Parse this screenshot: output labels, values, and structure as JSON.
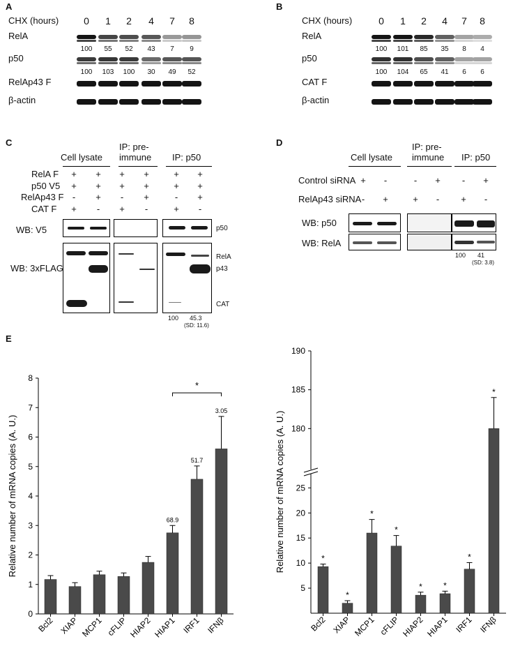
{
  "panelA": {
    "letter": "A",
    "header_label": "CHX (hours)",
    "timepoints": [
      "0",
      "1",
      "2",
      "4",
      "7",
      "8"
    ],
    "rows": [
      {
        "label": "RelA",
        "quant": [
          "100",
          "55",
          "52",
          "43",
          "7",
          "9"
        ],
        "intensity": [
          1.0,
          0.75,
          0.7,
          0.65,
          0.3,
          0.32
        ]
      },
      {
        "label": "p50",
        "quant": [
          "100",
          "103",
          "100",
          "30",
          "49",
          "52"
        ],
        "intensity": [
          0.8,
          0.82,
          0.8,
          0.55,
          0.65,
          0.66
        ]
      },
      {
        "label": "RelAp43 F",
        "quant": [],
        "intensity": [
          1.0,
          1.0,
          1.0,
          1.0,
          1.0,
          1.0
        ]
      },
      {
        "label": "β-actin",
        "quant": [],
        "intensity": [
          1.0,
          1.0,
          1.0,
          1.0,
          1.0,
          1.0
        ]
      }
    ]
  },
  "panelB": {
    "letter": "B",
    "header_label": "CHX (hours)",
    "timepoints": [
      "0",
      "1",
      "2",
      "4",
      "7",
      "8"
    ],
    "rows": [
      {
        "label": "RelA",
        "quant": [
          "100",
          "101",
          "85",
          "35",
          "8",
          "4"
        ],
        "intensity": [
          1.0,
          1.0,
          0.9,
          0.6,
          0.25,
          0.2
        ]
      },
      {
        "label": "p50",
        "quant": [
          "100",
          "104",
          "65",
          "41",
          "6",
          "6"
        ],
        "intensity": [
          0.85,
          0.85,
          0.7,
          0.6,
          0.25,
          0.25
        ]
      },
      {
        "label": "CAT F",
        "quant": [],
        "intensity": [
          1.0,
          1.0,
          1.0,
          1.0,
          1.0,
          1.0
        ]
      },
      {
        "label": "β-actin",
        "quant": [],
        "intensity": [
          1.0,
          1.0,
          1.0,
          1.0,
          1.0,
          1.0
        ]
      }
    ]
  },
  "panelC": {
    "letter": "C",
    "groups": [
      "Cell lysate",
      "IP: pre-",
      "immune",
      "IP: p50"
    ],
    "conditions": [
      {
        "label": "RelA F",
        "marks": [
          "+",
          "+",
          "+",
          "+",
          "+",
          "+"
        ]
      },
      {
        "label": "p50 V5",
        "marks": [
          "+",
          "+",
          "+",
          "+",
          "+",
          "+"
        ]
      },
      {
        "label": "RelAp43 F",
        "marks": [
          "-",
          "+",
          "-",
          "+",
          "-",
          "+"
        ]
      },
      {
        "label": "CAT F",
        "marks": [
          "+",
          "-",
          "+",
          "-",
          "+",
          "-"
        ]
      }
    ],
    "wb_v5": "WB: V5",
    "wb_flag": "WB: 3xFLAG",
    "band_labels": [
      "p50",
      "RelA",
      "p43",
      "CAT"
    ],
    "quant": [
      "100",
      "45.3"
    ],
    "sd": "(SD: 11.6)"
  },
  "panelD": {
    "letter": "D",
    "groups": [
      "Cell lysate",
      "IP: pre-",
      "immune",
      "IP: p50"
    ],
    "conditions": [
      {
        "label": "Control siRNA",
        "marks": [
          "+",
          "-",
          "-",
          "+",
          "-",
          "+"
        ]
      },
      {
        "label": "RelAp43 siRNA",
        "marks": [
          "-",
          "+",
          "+",
          "-",
          "+",
          "-"
        ]
      }
    ],
    "wb_p50": "WB: p50",
    "wb_rela": "WB: RelA",
    "quant": [
      "100",
      "41"
    ],
    "sd": "(SD: 3.8)"
  },
  "panelE": {
    "letter": "E"
  },
  "chart_data": [
    {
      "type": "bar",
      "title": "",
      "xlabel": "",
      "ylabel": "Relative number of mRNA copies (A. U.)",
      "categories": [
        "Bcl2",
        "XIAP",
        "MCP1",
        "cFLIP",
        "HIAP2",
        "HIAP1",
        "IRF1",
        "IFNβ"
      ],
      "values": [
        1.17,
        0.93,
        1.33,
        1.27,
        1.75,
        2.75,
        4.57,
        5.6
      ],
      "errors": [
        0.13,
        0.13,
        0.12,
        0.12,
        0.2,
        0.25,
        0.45,
        1.1
      ],
      "bar_labels": [
        "",
        "",
        "",
        "",
        "",
        "68.9",
        "51.7",
        "3.05"
      ],
      "significance": {
        "from": "HIAP1",
        "to": "IFNβ",
        "label": "*"
      },
      "ylim": [
        0,
        8
      ],
      "yticks": [
        "0",
        "1",
        "2",
        "3",
        "4",
        "5",
        "6",
        "7",
        "8"
      ],
      "bar_color": "#4a4a4a"
    },
    {
      "type": "bar",
      "title": "",
      "xlabel": "",
      "ylabel": "Relative number of mRNA copies (A. U.)",
      "categories": [
        "Bcl2",
        "XIAP",
        "MCP1",
        "cFLIP",
        "HIAP2",
        "HIAP1",
        "IRF1",
        "IFNβ"
      ],
      "values": [
        9.3,
        2.0,
        16.0,
        13.4,
        3.6,
        3.9,
        8.8,
        180
      ],
      "errors": [
        0.5,
        0.5,
        2.7,
        2.1,
        0.6,
        0.5,
        1.3,
        4.0
      ],
      "significance_marks": [
        "*",
        "*",
        "*",
        "*",
        "*",
        "*",
        "*",
        "*"
      ],
      "axis_break": [
        27,
        175
      ],
      "ylim_lower": [
        0,
        27
      ],
      "ylim_upper": [
        175,
        190
      ],
      "yticks_lower": [
        "5",
        "10",
        "15",
        "20",
        "25"
      ],
      "yticks_upper": [
        "180",
        "185",
        "190"
      ],
      "bar_color": "#4a4a4a"
    }
  ]
}
